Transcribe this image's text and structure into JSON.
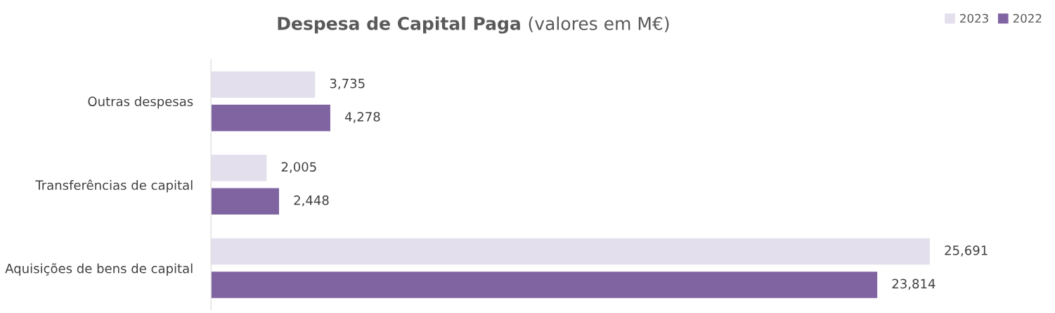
{
  "chart_data": {
    "type": "bar",
    "orientation": "horizontal",
    "title": "Despesa de Capital Paga",
    "subtitle": "(valores em M€)",
    "categories": [
      "Outras despesas",
      "Transferências de capital",
      "Aquisições de bens de capital"
    ],
    "series": [
      {
        "name": "2023",
        "color": "#e4dfec",
        "values": [
          3735,
          2005,
          25691
        ],
        "value_labels": [
          "3,735",
          "2,005",
          "25,691"
        ]
      },
      {
        "name": "2022",
        "color": "#8064a2",
        "values": [
          4278,
          2448,
          23814
        ],
        "value_labels": [
          "4,278",
          "2,448",
          "23,814"
        ]
      }
    ],
    "legend": "top right",
    "grid": false,
    "tick_labels": "y"
  }
}
